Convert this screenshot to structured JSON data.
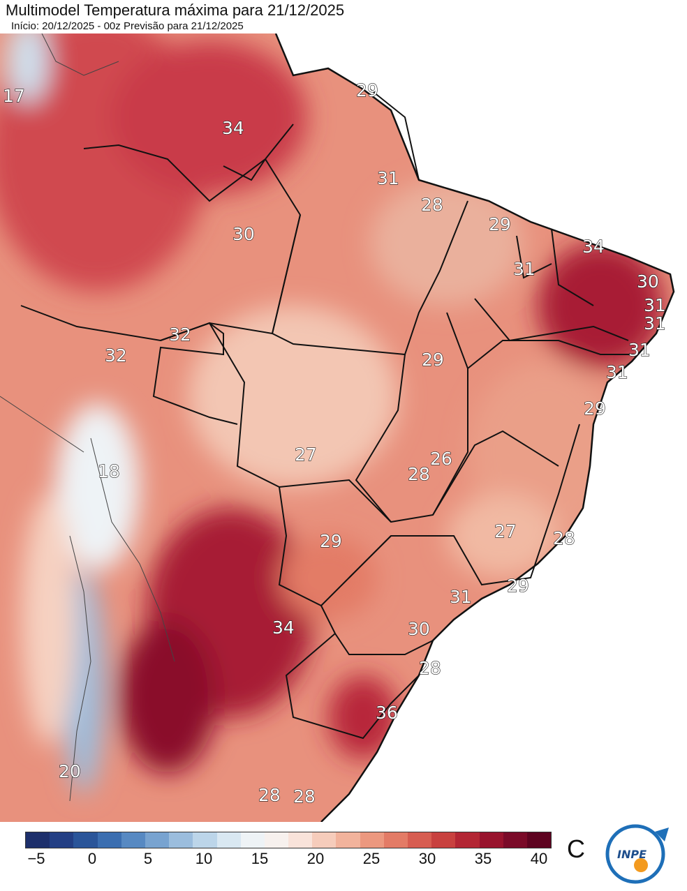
{
  "header": {
    "title": "Multimodel Temperatura máxima para 21/12/2025",
    "subtitle": "Início: 20/12/2025 - 00z  Previsão para 21/12/2025"
  },
  "map_labels": [
    "17",
    "34",
    "29",
    "31",
    "28",
    "30",
    "29",
    "34",
    "31",
    "30",
    "31",
    "31",
    "31",
    "31",
    "32",
    "32",
    "29",
    "29",
    "18",
    "26",
    "28",
    "27",
    "27",
    "28",
    "29",
    "29",
    "31",
    "34",
    "30",
    "28",
    "36",
    "20",
    "28",
    "28"
  ],
  "colorbar": {
    "unit": "C",
    "ticks": [
      "−5",
      "0",
      "5",
      "10",
      "15",
      "20",
      "25",
      "30",
      "35",
      "40"
    ],
    "colors": [
      "#1d2f6b",
      "#233f84",
      "#2a5599",
      "#3b6eb0",
      "#5789c2",
      "#78a3d0",
      "#9bbddd",
      "#bcd5e9",
      "#d9e8f2",
      "#eef3f6",
      "#f7f1ee",
      "#f9e3da",
      "#f6ccbb",
      "#f2b39c",
      "#ec987f",
      "#e37b66",
      "#d75d51",
      "#c8413f",
      "#b32634",
      "#98132d",
      "#7a0a28",
      "#5e0320"
    ]
  },
  "logo": {
    "text": "INPE"
  }
}
